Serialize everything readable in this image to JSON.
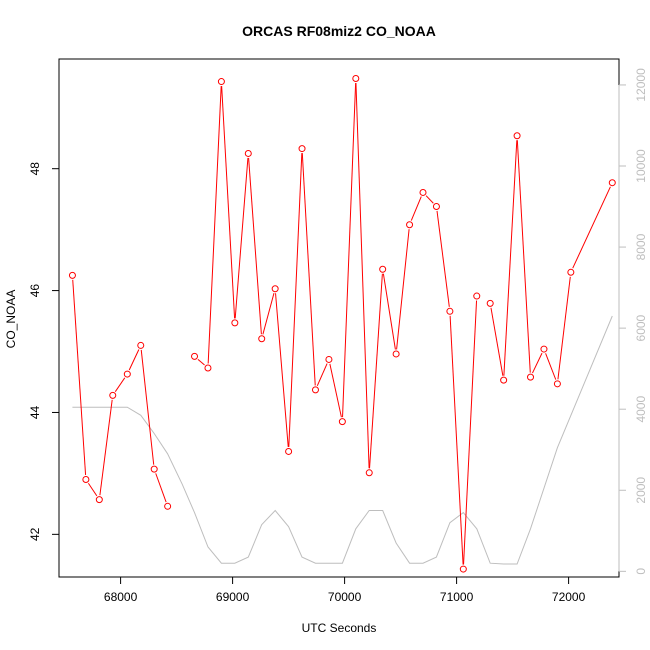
{
  "chart_data": {
    "type": "line",
    "title": "ORCAS RF08miz2 CO_NOAA",
    "xlabel": "UTC Seconds",
    "ylabel": "CO_NOAA",
    "xlim": [
      67450,
      72450
    ],
    "ylim": [
      41.3,
      49.8
    ],
    "y2lim": [
      -140,
      12640
    ],
    "x_ticks": [
      68000,
      69000,
      70000,
      71000,
      72000
    ],
    "y_ticks": [
      42,
      44,
      46,
      48
    ],
    "y2_ticks": [
      0,
      2000,
      4000,
      6000,
      8000,
      10000,
      12000
    ],
    "grid": false,
    "series": [
      {
        "axis": "left",
        "color": "#ff0000",
        "markers": "open-circle",
        "segments": [
          [
            {
              "x": 67570,
              "y": 46.25
            },
            {
              "x": 67690,
              "y": 42.9
            },
            {
              "x": 67810,
              "y": 42.57
            },
            {
              "x": 67930,
              "y": 44.28
            },
            {
              "x": 68060,
              "y": 44.63
            },
            {
              "x": 68180,
              "y": 45.1
            },
            {
              "x": 68300,
              "y": 43.07
            },
            {
              "x": 68420,
              "y": 42.46
            }
          ],
          [
            {
              "x": 68660,
              "y": 44.92
            },
            {
              "x": 68780,
              "y": 44.73
            },
            {
              "x": 68900,
              "y": 49.43
            },
            {
              "x": 69020,
              "y": 45.47
            },
            {
              "x": 69140,
              "y": 48.25
            },
            {
              "x": 69260,
              "y": 45.21
            },
            {
              "x": 69380,
              "y": 46.03
            },
            {
              "x": 69500,
              "y": 43.36
            },
            {
              "x": 69620,
              "y": 48.33
            },
            {
              "x": 69740,
              "y": 44.37
            },
            {
              "x": 69860,
              "y": 44.87
            },
            {
              "x": 69980,
              "y": 43.85
            },
            {
              "x": 70100,
              "y": 49.48
            },
            {
              "x": 70220,
              "y": 43.01
            },
            {
              "x": 70340,
              "y": 46.35
            },
            {
              "x": 70460,
              "y": 44.96
            },
            {
              "x": 70580,
              "y": 47.08
            },
            {
              "x": 70700,
              "y": 47.61
            },
            {
              "x": 70820,
              "y": 47.38
            },
            {
              "x": 70940,
              "y": 45.66
            },
            {
              "x": 71060,
              "y": 41.43
            },
            {
              "x": 71180,
              "y": 45.91
            }
          ],
          [
            {
              "x": 71300,
              "y": 45.79
            },
            {
              "x": 71420,
              "y": 44.53
            },
            {
              "x": 71540,
              "y": 48.54
            },
            {
              "x": 71660,
              "y": 44.58
            },
            {
              "x": 71780,
              "y": 45.04
            },
            {
              "x": 71900,
              "y": 44.47
            },
            {
              "x": 72020,
              "y": 46.3
            }
          ],
          [
            {
              "x": 72020,
              "y": 46.3
            },
            {
              "x": 72390,
              "y": 47.77
            }
          ]
        ]
      },
      {
        "axis": "right",
        "color": "#bebebe",
        "markers": "none",
        "points": [
          {
            "x": 67570,
            "y": 4050
          },
          {
            "x": 67800,
            "y": 4050
          },
          {
            "x": 68060,
            "y": 4050
          },
          {
            "x": 68180,
            "y": 3850
          },
          {
            "x": 68300,
            "y": 3400
          },
          {
            "x": 68420,
            "y": 2900
          },
          {
            "x": 68550,
            "y": 2150
          },
          {
            "x": 68660,
            "y": 1450
          },
          {
            "x": 68780,
            "y": 600
          },
          {
            "x": 68900,
            "y": 200
          },
          {
            "x": 69020,
            "y": 200
          },
          {
            "x": 69140,
            "y": 350
          },
          {
            "x": 69260,
            "y": 1150
          },
          {
            "x": 69380,
            "y": 1500
          },
          {
            "x": 69500,
            "y": 1100
          },
          {
            "x": 69620,
            "y": 350
          },
          {
            "x": 69740,
            "y": 200
          },
          {
            "x": 69980,
            "y": 200
          },
          {
            "x": 70100,
            "y": 1050
          },
          {
            "x": 70220,
            "y": 1500
          },
          {
            "x": 70340,
            "y": 1500
          },
          {
            "x": 70460,
            "y": 700
          },
          {
            "x": 70580,
            "y": 200
          },
          {
            "x": 70700,
            "y": 200
          },
          {
            "x": 70820,
            "y": 350
          },
          {
            "x": 70940,
            "y": 1200
          },
          {
            "x": 71060,
            "y": 1450
          },
          {
            "x": 71180,
            "y": 1050
          },
          {
            "x": 71300,
            "y": 200
          },
          {
            "x": 71420,
            "y": 180
          },
          {
            "x": 71540,
            "y": 180
          },
          {
            "x": 71660,
            "y": 1050
          },
          {
            "x": 71900,
            "y": 3050
          },
          {
            "x": 72390,
            "y": 6300
          }
        ]
      }
    ]
  }
}
